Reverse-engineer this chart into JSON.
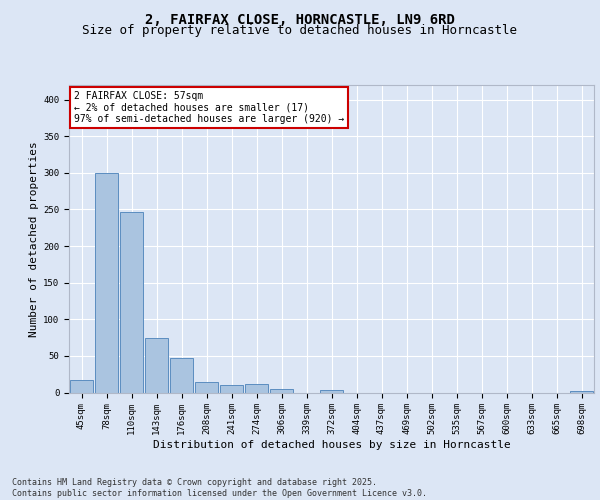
{
  "title_line1": "2, FAIRFAX CLOSE, HORNCASTLE, LN9 6RD",
  "title_line2": "Size of property relative to detached houses in Horncastle",
  "xlabel": "Distribution of detached houses by size in Horncastle",
  "ylabel": "Number of detached properties",
  "categories": [
    "45sqm",
    "78sqm",
    "110sqm",
    "143sqm",
    "176sqm",
    "208sqm",
    "241sqm",
    "274sqm",
    "306sqm",
    "339sqm",
    "372sqm",
    "404sqm",
    "437sqm",
    "469sqm",
    "502sqm",
    "535sqm",
    "567sqm",
    "600sqm",
    "633sqm",
    "665sqm",
    "698sqm"
  ],
  "values": [
    17,
    300,
    247,
    75,
    47,
    15,
    10,
    12,
    5,
    0,
    3,
    0,
    0,
    0,
    0,
    0,
    0,
    0,
    0,
    0,
    2
  ],
  "bar_color": "#aac4e0",
  "bar_edge_color": "#5b8dc0",
  "annotation_text": "2 FAIRFAX CLOSE: 57sqm\n← 2% of detached houses are smaller (17)\n97% of semi-detached houses are larger (920) →",
  "annotation_box_color": "#ffffff",
  "annotation_box_edge_color": "#cc0000",
  "footer_text": "Contains HM Land Registry data © Crown copyright and database right 2025.\nContains public sector information licensed under the Open Government Licence v3.0.",
  "ylim": [
    0,
    420
  ],
  "yticks": [
    0,
    50,
    100,
    150,
    200,
    250,
    300,
    350,
    400
  ],
  "background_color": "#dce6f5",
  "plot_bg_color": "#dce6f5",
  "grid_color": "#ffffff",
  "title_fontsize": 10,
  "subtitle_fontsize": 9,
  "tick_fontsize": 6.5,
  "label_fontsize": 8,
  "ylabel_fontsize": 8,
  "annotation_fontsize": 7,
  "footer_fontsize": 6
}
